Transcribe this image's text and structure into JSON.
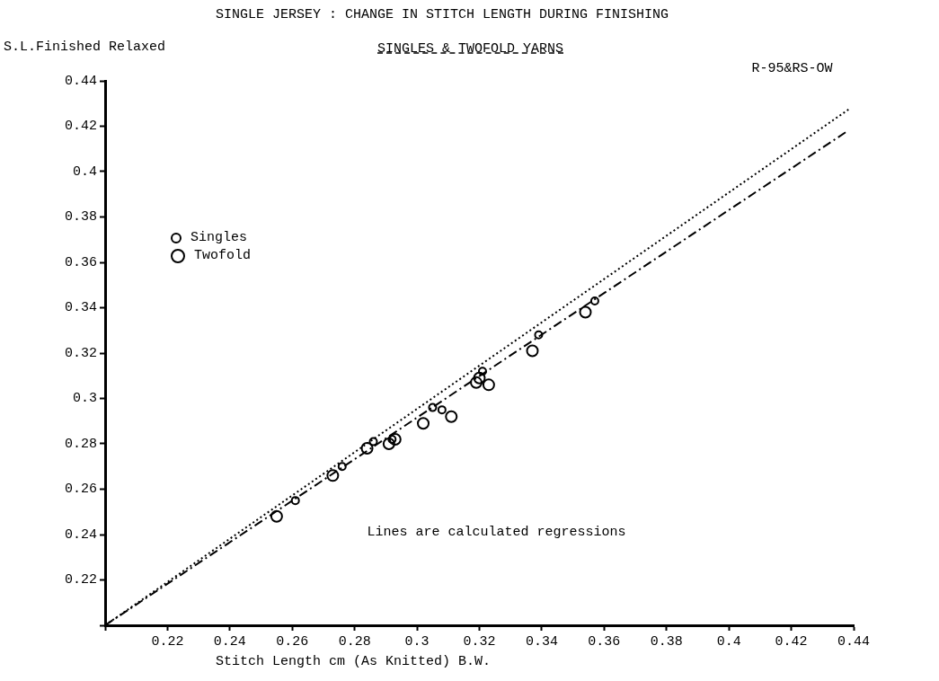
{
  "chart_data": {
    "type": "scatter",
    "title": "SINGLE JERSEY : CHANGE IN STITCH LENGTH DURING FINISHING",
    "subtitle": "SINGLES & TWOFOLD YARNS",
    "xlabel": "Stitch Length cm (As Knitted) B.W.",
    "ylabel": "S.L.Finished Relaxed",
    "annotations": [
      "Lines are calculated regressions"
    ],
    "xlim": [
      0.2,
      0.44
    ],
    "ylim": [
      0.2,
      0.44
    ],
    "xticks": [
      {
        "value": 0.2,
        "label": null
      },
      0.22,
      0.24,
      0.26,
      0.28,
      0.3,
      0.32,
      0.34,
      0.36,
      0.38,
      0.4,
      0.42,
      0.44
    ],
    "yticks": [
      {
        "value": 0.2,
        "label": null
      },
      0.22,
      0.24,
      0.26,
      0.28,
      0.3,
      0.32,
      0.34,
      0.36,
      0.38,
      0.4,
      0.42,
      0.44
    ],
    "grid": false,
    "legend": "top left",
    "marker": "circle",
    "series": [
      {
        "name": "Singles",
        "color": "#000000",
        "x": [
          0.261,
          0.276,
          0.286,
          0.292,
          0.305,
          0.308,
          0.321,
          0.339,
          0.357
        ],
        "values": [
          0.255,
          0.27,
          0.281,
          0.282,
          0.296,
          0.295,
          0.312,
          0.328,
          0.343
        ]
      },
      {
        "name": "Twofold",
        "color": "#000000",
        "x": [
          0.255,
          0.273,
          0.284,
          0.291,
          0.293,
          0.302,
          0.311,
          0.319,
          0.32,
          0.323,
          0.337,
          0.354
        ],
        "values": [
          0.248,
          0.266,
          0.278,
          0.28,
          0.282,
          0.289,
          0.292,
          0.307,
          0.309,
          0.306,
          0.321,
          0.338
        ]
      },
      {
        "name": "R-95&RS-OW",
        "color": "#000000",
        "type": "line",
        "marker": "none",
        "line_style": "dotted",
        "x": [
          0.2,
          0.439
        ],
        "values": [
          0.2,
          0.428
        ]
      },
      {
        "color": "#000000",
        "type": "line",
        "marker": "none",
        "line_style": "dashed",
        "x": [
          0.2,
          0.4375
        ],
        "values": [
          0.2,
          0.4174
        ]
      }
    ]
  }
}
